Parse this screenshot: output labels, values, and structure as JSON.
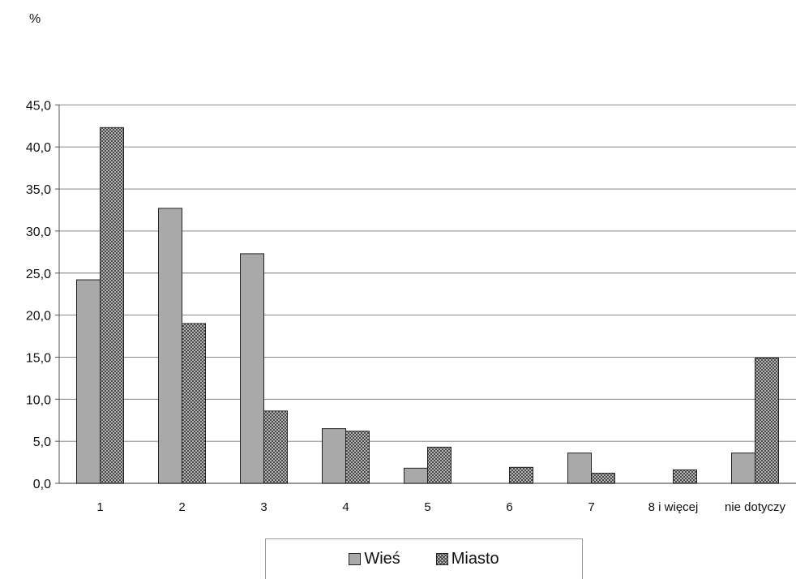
{
  "chart_data": {
    "type": "bar",
    "ylabel": "%",
    "ylim": [
      0,
      45
    ],
    "yticks": [
      "0,0",
      "5,0",
      "10,0",
      "15,0",
      "20,0",
      "25,0",
      "30,0",
      "35,0",
      "40,0",
      "45,0"
    ],
    "categories": [
      "1",
      "2",
      "3",
      "4",
      "5",
      "6",
      "7",
      "8 i więcej",
      "nie dotyczy"
    ],
    "series": [
      {
        "name": "Wieś",
        "values": [
          24.2,
          32.7,
          27.3,
          6.5,
          1.8,
          0.0,
          3.6,
          0.0,
          3.6
        ],
        "color": "#a9a9a9",
        "pattern": "solid"
      },
      {
        "name": "Miasto",
        "values": [
          42.3,
          19.0,
          8.6,
          6.2,
          4.3,
          1.9,
          1.2,
          1.6,
          14.9
        ],
        "color": "#555555",
        "pattern": "crosshatch"
      }
    ],
    "grid": true,
    "legend_position": "bottom"
  }
}
